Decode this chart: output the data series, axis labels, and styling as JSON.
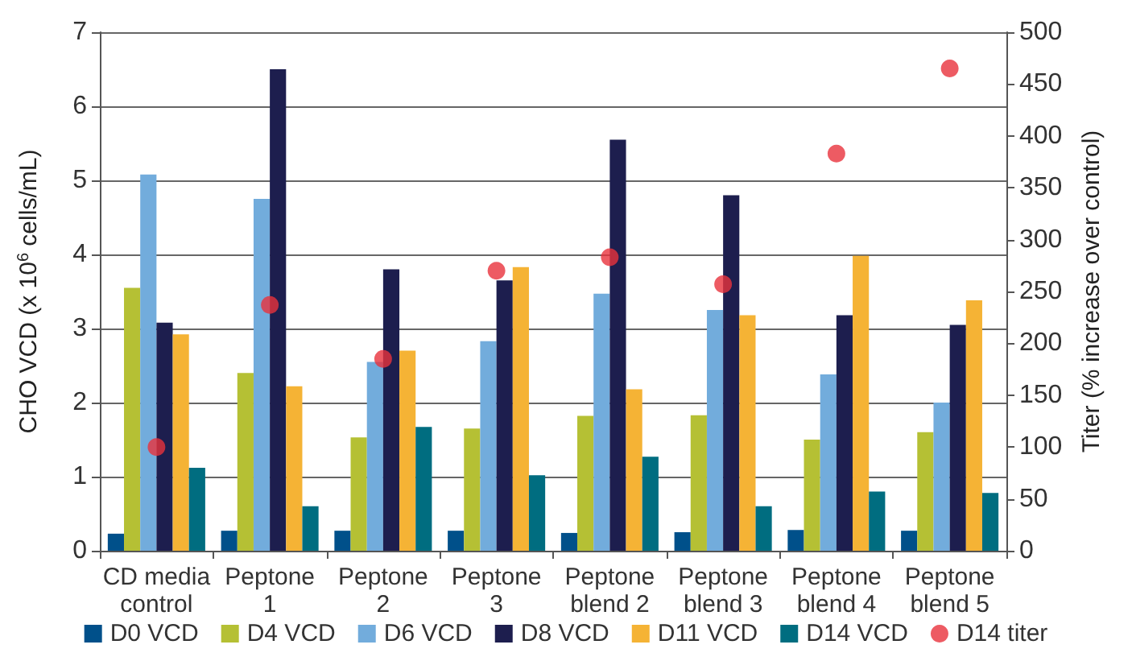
{
  "chart_data": {
    "type": "bar",
    "ylabel": "CHO VCD (x 10$^{6}$ cells/mL)",
    "y2label": "Titer (% increase over control)",
    "categories": [
      "CD media\ncontrol",
      "Peptone\n1",
      "Peptone\n2",
      "Peptone\n3",
      "Peptone\nblend 2",
      "Peptone\nblend 3",
      "Peptone\nblend 4",
      "Peptone\nblend 5"
    ],
    "series": [
      {
        "name": "D0 VCD",
        "color": "#00508a",
        "values": [
          0.23,
          0.27,
          0.27,
          0.27,
          0.24,
          0.25,
          0.28,
          0.27
        ]
      },
      {
        "name": "D4 VCD",
        "color": "#b5c034",
        "values": [
          3.55,
          2.4,
          1.53,
          1.65,
          1.82,
          1.83,
          1.5,
          1.6
        ]
      },
      {
        "name": "D6 VCD",
        "color": "#72acdc",
        "values": [
          5.08,
          4.75,
          2.55,
          2.83,
          3.47,
          3.25,
          2.38,
          2.0
        ]
      },
      {
        "name": "D8 VCD",
        "color": "#1d1e4e",
        "values": [
          3.08,
          6.5,
          3.8,
          3.65,
          5.55,
          4.8,
          3.18,
          3.05
        ]
      },
      {
        "name": "D11 VCD",
        "color": "#f5b335",
        "values": [
          2.92,
          2.22,
          2.7,
          3.83,
          2.18,
          3.18,
          3.98,
          3.38
        ]
      },
      {
        "name": "D14 VCD",
        "color": "#006d80",
        "values": [
          1.12,
          0.6,
          1.67,
          1.02,
          1.27,
          0.6,
          0.8,
          0.78
        ]
      },
      {
        "name": "D14 titer",
        "type": "scatter",
        "axis": "y2",
        "color": "#e8323c",
        "values": [
          100,
          237,
          185,
          270,
          283,
          257,
          383,
          465
        ]
      }
    ],
    "ylim": [
      0,
      7
    ],
    "yticks": [
      0,
      1,
      2,
      3,
      4,
      5,
      6,
      7
    ],
    "y2lim": [
      0,
      500
    ],
    "y2ticks": [
      0,
      50,
      100,
      150,
      200,
      250,
      300,
      350,
      400,
      450,
      500
    ],
    "grid": "y",
    "legend": "bottom",
    "marker": "circle"
  }
}
